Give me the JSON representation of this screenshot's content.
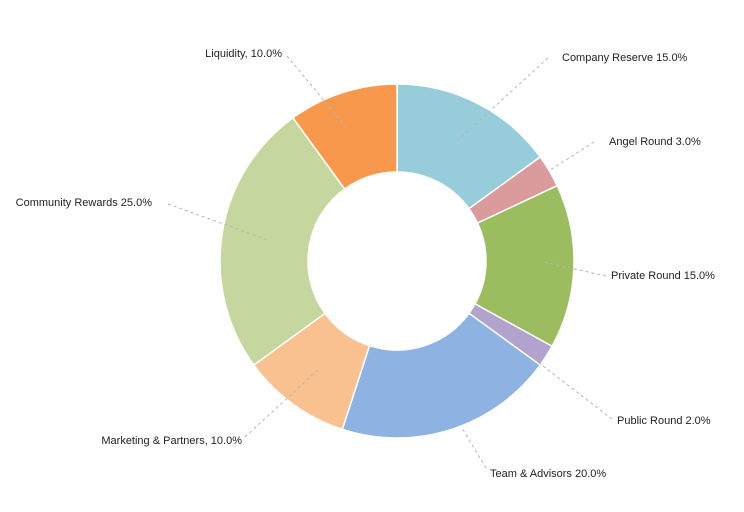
{
  "chart_data": {
    "type": "pie",
    "donut": true,
    "title": "",
    "start_angle_deg": 0,
    "direction": "clockwise",
    "slices": [
      {
        "name": "Company Reserve",
        "value": 15.0,
        "label": "Company Reserve 15.0%",
        "color": "#97CCDA"
      },
      {
        "name": "Angel Round",
        "value": 3.0,
        "label": "Angel Round 3.0%",
        "color": "#DB9A9B"
      },
      {
        "name": "Private Round",
        "value": 15.0,
        "label": "Private Round 15.0%",
        "color": "#9CBD5F"
      },
      {
        "name": "Public Round",
        "value": 2.0,
        "label": "Public Round 2.0%",
        "color": "#B2A3CE"
      },
      {
        "name": "Team & Advisors",
        "value": 20.0,
        "label": "Team & Advisors 20.0%",
        "color": "#8EB2E2"
      },
      {
        "name": "Marketing & Partners",
        "value": 10.0,
        "label": "Marketing & Partners, 10.0%",
        "color": "#F8C18F"
      },
      {
        "name": "Community Rewards",
        "value": 25.0,
        "label": "Community Rewards 25.0%",
        "color": "#C5D79E"
      },
      {
        "name": "Liquidity",
        "value": 10.0,
        "label": "Liquidity, 10.0%",
        "color": "#F8984C"
      }
    ]
  }
}
